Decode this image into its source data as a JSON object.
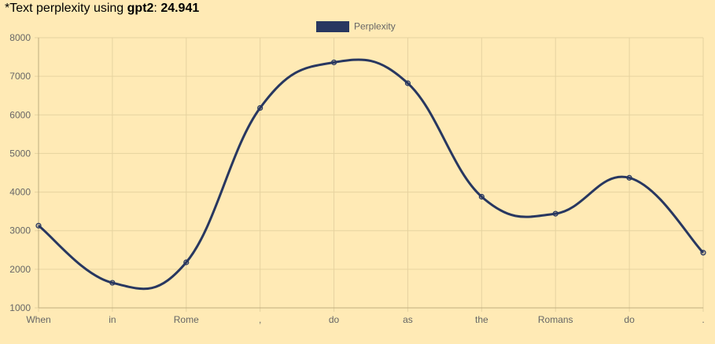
{
  "header": {
    "prefix": "*Text perplexity using ",
    "model": "gpt2",
    "separator": ": ",
    "score": "24.941"
  },
  "colors": {
    "background": "#ffeab5",
    "line": "#283760",
    "grid": "#e6d3a0"
  },
  "chart_data": {
    "type": "line",
    "categories": [
      "When",
      "in",
      "Rome",
      ",",
      "do",
      "as",
      "the",
      "Romans",
      "do",
      "."
    ],
    "series": [
      {
        "name": "Perplexity",
        "values": [
          3130,
          1650,
          2180,
          6180,
          7360,
          6820,
          3880,
          3440,
          4370,
          2430
        ]
      }
    ],
    "ylim": [
      1000,
      8000
    ],
    "yticks": [
      1000,
      2000,
      3000,
      4000,
      5000,
      6000,
      7000,
      8000
    ],
    "legend_position": "top-center",
    "grid": true
  }
}
